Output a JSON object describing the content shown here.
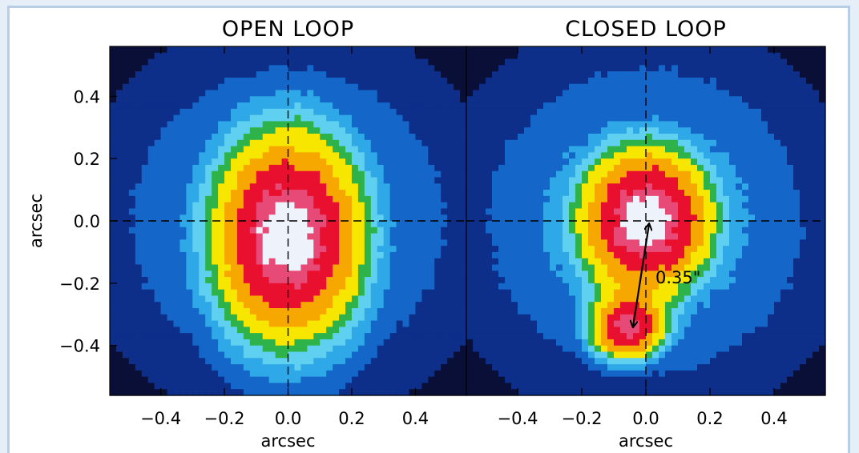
{
  "chart_data": [
    {
      "type": "heatmap",
      "title": "OPEN LOOP",
      "xlabel": "arcsec",
      "ylabel": "arcsec",
      "xlim": [
        -0.56,
        0.56
      ],
      "ylim": [
        -0.56,
        0.56
      ],
      "xticks": [
        "-0.4",
        "-0.2",
        "0.0",
        "0.2",
        "0.4"
      ],
      "yticks": [
        "0.4",
        "0.2",
        "0.0",
        "-0.2",
        "-0.4"
      ],
      "xtick_values": [
        -0.4,
        -0.2,
        0.0,
        0.2,
        0.4
      ],
      "ytick_values": [
        0.4,
        0.2,
        0.0,
        -0.2,
        -0.4
      ],
      "crosshair": {
        "x": 0.0,
        "y": 0.0
      },
      "sources": [
        {
          "x": 0.0,
          "y": -0.05,
          "sx": 0.17,
          "sy": 0.24,
          "peak": 1.0
        }
      ],
      "colormap": [
        "#0a0f38",
        "#0d2f8a",
        "#1466c8",
        "#2fa8e8",
        "#5fd0f0",
        "#2db34a",
        "#f7e600",
        "#f7a800",
        "#e8102e",
        "#e84a78",
        "#eef2fa"
      ]
    },
    {
      "type": "heatmap",
      "title": "CLOSED LOOP",
      "xlabel": "arcsec",
      "ylabel": "",
      "xlim": [
        -0.56,
        0.56
      ],
      "ylim": [
        -0.56,
        0.56
      ],
      "xticks": [
        "-0.4",
        "-0.2",
        "0.0",
        "0.2",
        "0.4"
      ],
      "yticks": [],
      "xtick_values": [
        -0.4,
        -0.2,
        0.0,
        0.2,
        0.4
      ],
      "ytick_values": [],
      "crosshair": {
        "x": 0.0,
        "y": 0.0
      },
      "sources": [
        {
          "x": 0.0,
          "y": 0.0,
          "sx": 0.15,
          "sy": 0.17,
          "peak": 1.0
        },
        {
          "x": -0.06,
          "y": -0.35,
          "sx": 0.08,
          "sy": 0.07,
          "peak": 0.75
        }
      ],
      "annotation": {
        "label": "0.35\"",
        "from": [
          0.01,
          0.0
        ],
        "to": [
          -0.04,
          -0.35
        ],
        "label_at": [
          0.03,
          -0.18
        ]
      },
      "colormap": [
        "#0a0f38",
        "#0d2f8a",
        "#1466c8",
        "#2fa8e8",
        "#5fd0f0",
        "#2db34a",
        "#f7e600",
        "#f7a800",
        "#e8102e",
        "#e84a78",
        "#eef2fa"
      ]
    }
  ]
}
